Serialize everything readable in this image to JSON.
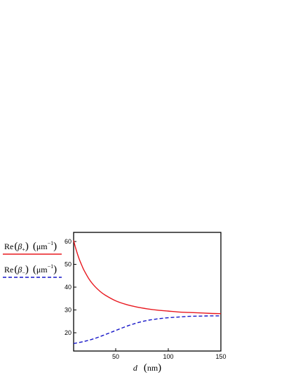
{
  "chart_data": {
    "type": "line",
    "xlabel": {
      "symbol": "d",
      "unit": "nm"
    },
    "xlim": [
      10,
      150
    ],
    "ylim": [
      12,
      64
    ],
    "xticks": [
      50,
      100,
      150
    ],
    "yticks": [
      20,
      30,
      40,
      50,
      60
    ],
    "grid": false,
    "legend_position": "left",
    "series": [
      {
        "legend": {
          "prefix": "Re",
          "symbol": "β",
          "subscript": "+",
          "unit": "μm",
          "exp": "−1"
        },
        "color": "#e8181f",
        "dash": "solid",
        "x": [
          10,
          12,
          15,
          18,
          20,
          25,
          30,
          35,
          40,
          50,
          60,
          70,
          80,
          90,
          100,
          110,
          120,
          130,
          140,
          150
        ],
        "y": [
          60.5,
          57.0,
          52.7,
          49.3,
          47.3,
          43.3,
          40.4,
          38.2,
          36.5,
          34.0,
          32.4,
          31.3,
          30.5,
          29.9,
          29.5,
          29.1,
          28.9,
          28.7,
          28.5,
          28.4
        ]
      },
      {
        "legend": {
          "prefix": "Re",
          "symbol": "β",
          "subscript": "−",
          "unit": "μm",
          "exp": "−1"
        },
        "color": "#1515c8",
        "dash": "dashed",
        "x": [
          10,
          20,
          30,
          40,
          50,
          60,
          70,
          80,
          90,
          100,
          110,
          120,
          130,
          140,
          150
        ],
        "y": [
          15.3,
          16.2,
          17.5,
          19.2,
          21.0,
          22.8,
          24.3,
          25.4,
          26.1,
          26.6,
          26.9,
          27.2,
          27.3,
          27.4,
          27.4
        ]
      }
    ]
  }
}
